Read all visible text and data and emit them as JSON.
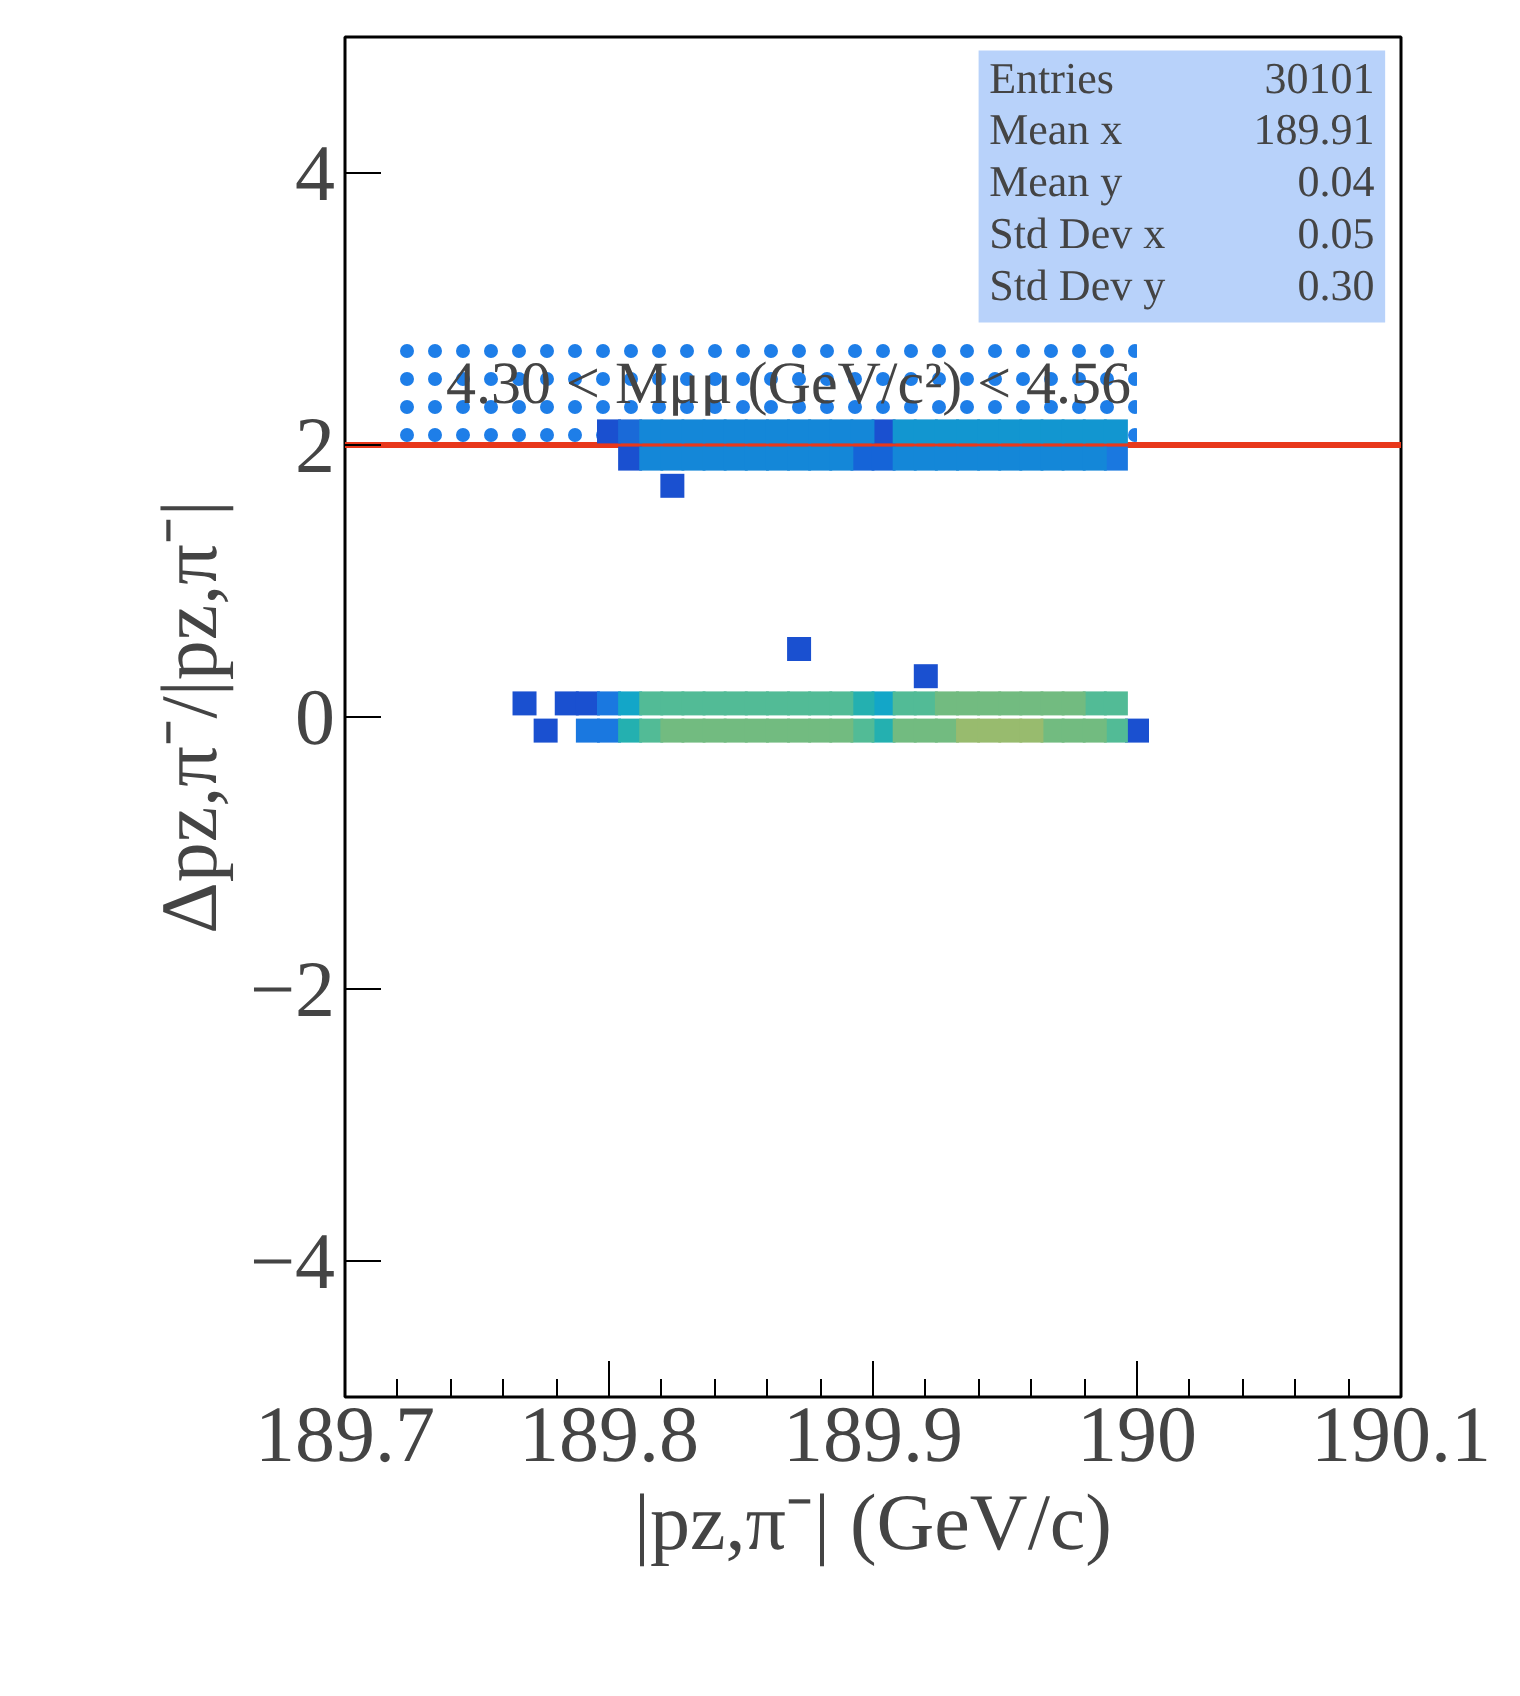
{
  "chart_data": {
    "type": "scatter",
    "marker": "square",
    "xlabel": "|pz,π⁻| (GeV/c)",
    "ylabel": "Δpz,π⁻/|pz,π⁻|",
    "xlim": [
      189.7,
      190.1
    ],
    "xticks": [
      189.7,
      189.8,
      189.9,
      190,
      190.1
    ],
    "ylim": [
      -5,
      5
    ],
    "yticks": [
      -4,
      -2,
      0,
      2,
      4
    ],
    "grid": false,
    "series": [
      {
        "color": "#1a50d0",
        "x": [
          189.768,
          189.784,
          189.792,
          189.776,
          190.0,
          189.872,
          189.92,
          189.8,
          189.904,
          189.808,
          189.824
        ],
        "values": [
          0.1,
          0.1,
          0.1,
          -0.1,
          -0.1,
          0.5,
          0.3,
          2.1,
          2.1,
          1.9,
          1.7
        ]
      },
      {
        "color": "#1a78e0",
        "x": [
          189.8,
          189.792,
          189.8,
          189.992
        ],
        "values": [
          0.1,
          -0.1,
          -0.1,
          1.9
        ]
      },
      {
        "color": "#1a6ad8",
        "x": [
          189.808
        ],
        "values": [
          2.1
        ]
      },
      {
        "color": "#1564d8",
        "x": [
          189.896,
          189.904
        ],
        "values": [
          1.9,
          1.9
        ]
      },
      {
        "color": "#13a6c8",
        "x": [
          189.808,
          189.904
        ],
        "values": [
          0.1,
          0.1
        ]
      },
      {
        "color": "#24b0b0",
        "x": [
          189.896,
          189.808,
          189.904
        ],
        "values": [
          0.1,
          -0.1,
          -0.1
        ]
      },
      {
        "color": "#52bb96",
        "x": [
          189.816,
          189.824,
          189.832,
          189.84,
          189.848,
          189.856,
          189.864,
          189.872,
          189.88,
          189.888,
          189.912,
          189.92,
          189.984,
          189.992,
          189.816,
          189.896,
          189.992
        ],
        "values": [
          0.1,
          0.1,
          0.1,
          0.1,
          0.1,
          0.1,
          0.1,
          0.1,
          0.1,
          0.1,
          0.1,
          0.1,
          0.1,
          0.1,
          -0.1,
          -0.1,
          -0.1
        ]
      },
      {
        "color": "#72bb80",
        "x": [
          189.928,
          189.936,
          189.944,
          189.952,
          189.96,
          189.968,
          189.976,
          189.824,
          189.832,
          189.84,
          189.848,
          189.856,
          189.864,
          189.872,
          189.88,
          189.888,
          189.912,
          189.92,
          189.928,
          189.968,
          189.976,
          189.984
        ],
        "values": [
          0.1,
          0.1,
          0.1,
          0.1,
          0.1,
          0.1,
          0.1,
          -0.1,
          -0.1,
          -0.1,
          -0.1,
          -0.1,
          -0.1,
          -0.1,
          -0.1,
          -0.1,
          -0.1,
          -0.1,
          -0.1,
          -0.1,
          -0.1,
          -0.1
        ]
      },
      {
        "color": "#98bb6e",
        "x": [
          189.936,
          189.944,
          189.952,
          189.96
        ],
        "values": [
          -0.1,
          -0.1,
          -0.1,
          -0.1
        ]
      },
      {
        "color": "#1487d8",
        "x": [
          189.816,
          189.824,
          189.832,
          189.84,
          189.848,
          189.856,
          189.864,
          189.872,
          189.88,
          189.888,
          189.896,
          189.816,
          189.824,
          189.832,
          189.84,
          189.848,
          189.856,
          189.864,
          189.872,
          189.88,
          189.888,
          189.912,
          189.92,
          189.928,
          189.936,
          189.944,
          189.952,
          189.96,
          189.968,
          189.976,
          189.984
        ],
        "values": [
          2.1,
          2.1,
          2.1,
          2.1,
          2.1,
          2.1,
          2.1,
          2.1,
          2.1,
          2.1,
          2.1,
          1.9,
          1.9,
          1.9,
          1.9,
          1.9,
          1.9,
          1.9,
          1.9,
          1.9,
          1.9,
          1.9,
          1.9,
          1.9,
          1.9,
          1.9,
          1.9,
          1.9,
          1.9,
          1.9,
          1.9
        ]
      },
      {
        "color": "#1296d0",
        "x": [
          189.912,
          189.92,
          189.928,
          189.936,
          189.944,
          189.952,
          189.96,
          189.968,
          189.976,
          189.984,
          189.992
        ],
        "values": [
          2.1,
          2.1,
          2.1,
          2.1,
          2.1,
          2.1,
          2.1,
          2.1,
          2.1,
          2.1,
          2.1
        ]
      }
    ],
    "ref_lines": [
      {
        "axis": "y",
        "value": 2,
        "color": "#e8381b"
      }
    ],
    "annotations": [
      "Entries 30101",
      "Mean x 189.91",
      "Mean y 0.04",
      "Std Dev x 0.05",
      "Std Dev y 0.30",
      "4.30 < Mμμ (GeV/c²) < 4.56"
    ]
  }
}
